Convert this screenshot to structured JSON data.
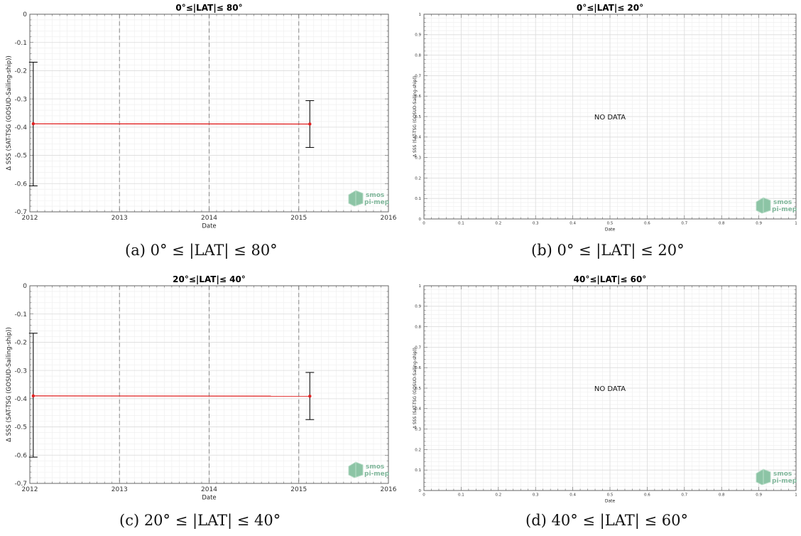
{
  "chart_data": [
    {
      "id": "a",
      "type": "line",
      "title": "0°≤|LAT|≤ 80°",
      "xlabel": "Date",
      "ylabel": "Δ SSS (SAT-TSG (GOSUD-Sailing-ship))",
      "xlim": [
        "2012-01-01",
        "2016-01-01"
      ],
      "ylim": [
        -0.7,
        0
      ],
      "xticks": [
        "2012",
        "2013",
        "2014",
        "2015",
        "2016"
      ],
      "yticks": [
        0,
        -0.1,
        -0.2,
        -0.3,
        -0.4,
        -0.5,
        -0.6,
        -0.7
      ],
      "grid": true,
      "vlines": [
        "2013-01-01",
        "2014-01-01",
        "2015-01-01"
      ],
      "series": [
        {
          "x": [
            "2012-01-15",
            "2015-02-15"
          ],
          "y": [
            -0.388,
            -0.389
          ],
          "color": "#e02020",
          "yerr_low": [
            -0.608,
            -0.472
          ],
          "yerr_high": [
            -0.17,
            -0.306
          ]
        }
      ],
      "caption": "(a) 0° ≤ |LAT| ≤ 80°",
      "watermark": [
        "smos",
        "pi-mep"
      ]
    },
    {
      "id": "b",
      "type": "line",
      "title": "0°≤|LAT|≤ 20°",
      "xlabel": "Date",
      "ylabel": "Δ SSS (SAT-TSG (GOSUD-Sailing-ship))",
      "xlim": [
        0,
        1
      ],
      "ylim": [
        0,
        1
      ],
      "xticks": [
        "0",
        "0.1",
        "0.2",
        "0.3",
        "0.4",
        "0.5",
        "0.6",
        "0.7",
        "0.8",
        "0.9",
        "1"
      ],
      "yticks": [
        0,
        0.1,
        0.2,
        0.3,
        0.4,
        0.5,
        0.6,
        0.7,
        0.8,
        0.9,
        1
      ],
      "grid": true,
      "annotation": "NO DATA",
      "series": [],
      "caption": "(b) 0° ≤ |LAT| ≤ 20°",
      "watermark": [
        "smos",
        "pi-mep"
      ]
    },
    {
      "id": "c",
      "type": "line",
      "title": "20°≤|LAT|≤ 40°",
      "xlabel": "Date",
      "ylabel": "Δ SSS (SAT-TSG (GOSUD-Sailing-ship))",
      "xlim": [
        "2012-01-01",
        "2016-01-01"
      ],
      "ylim": [
        -0.7,
        0
      ],
      "xticks": [
        "2012",
        "2013",
        "2014",
        "2015",
        "2016"
      ],
      "yticks": [
        0,
        -0.1,
        -0.2,
        -0.3,
        -0.4,
        -0.5,
        -0.6,
        -0.7
      ],
      "grid": true,
      "vlines": [
        "2013-01-01",
        "2014-01-01",
        "2015-01-01"
      ],
      "series": [
        {
          "x": [
            "2012-01-15",
            "2015-02-15"
          ],
          "y": [
            -0.39,
            -0.391
          ],
          "color": "#e02020",
          "yerr_low": [
            -0.607,
            -0.474
          ],
          "yerr_high": [
            -0.168,
            -0.307
          ]
        }
      ],
      "caption": "(c) 20° ≤ |LAT| ≤ 40°",
      "watermark": [
        "smos",
        "pi-mep"
      ]
    },
    {
      "id": "d",
      "type": "line",
      "title": "40°≤|LAT|≤ 60°",
      "xlabel": "Date",
      "ylabel": "Δ SSS (SAT-TSG (GOSUD-Sailing-ship))",
      "xlim": [
        0,
        1
      ],
      "ylim": [
        0,
        1
      ],
      "xticks": [
        "0",
        "0.1",
        "0.2",
        "0.3",
        "0.4",
        "0.5",
        "0.6",
        "0.7",
        "0.8",
        "0.9",
        "1"
      ],
      "yticks": [
        0,
        0.1,
        0.2,
        0.3,
        0.4,
        0.5,
        0.6,
        0.7,
        0.8,
        0.9,
        1
      ],
      "grid": true,
      "annotation": "NO DATA",
      "series": [],
      "caption": "(d) 40° ≤ |LAT| ≤ 60°",
      "watermark": [
        "smos",
        "pi-mep"
      ]
    }
  ]
}
